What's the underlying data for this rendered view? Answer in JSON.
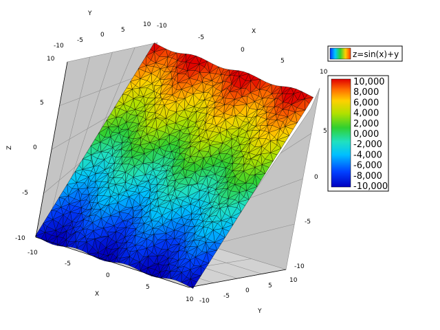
{
  "chart_data": {
    "type": "surface3d",
    "series": [
      {
        "name": "z=sin(x)+y",
        "formula": "z = sin(x) + y",
        "render": "triangulated mesh, jet colormap"
      }
    ],
    "x": {
      "label": "X",
      "range": [
        -10,
        10
      ],
      "ticks": [
        "-10",
        "-5",
        "0",
        "5",
        "10"
      ]
    },
    "y": {
      "label": "Y",
      "range": [
        -10,
        10
      ],
      "ticks": [
        "-10",
        "-5",
        "0",
        "5",
        "10"
      ]
    },
    "z": {
      "label": "Z",
      "range": [
        -10,
        10
      ],
      "ticks": [
        "-10",
        "-5",
        "0",
        "5",
        "10"
      ]
    },
    "colorbar": {
      "labels": [
        "10,000",
        "8,000",
        "6,000",
        "4,000",
        "2,000",
        "0,000",
        "-2,000",
        "-4,000",
        "-6,000",
        "-8,000",
        "-10,000"
      ],
      "min": -10,
      "max": 10,
      "colormap": "jet"
    },
    "grid": true,
    "legend_position": "top-right"
  },
  "colors": {
    "pane": "#c4c4c4",
    "grid": "#8e8e8e",
    "jet_low": "#00008f",
    "jet_high": "#800000"
  }
}
